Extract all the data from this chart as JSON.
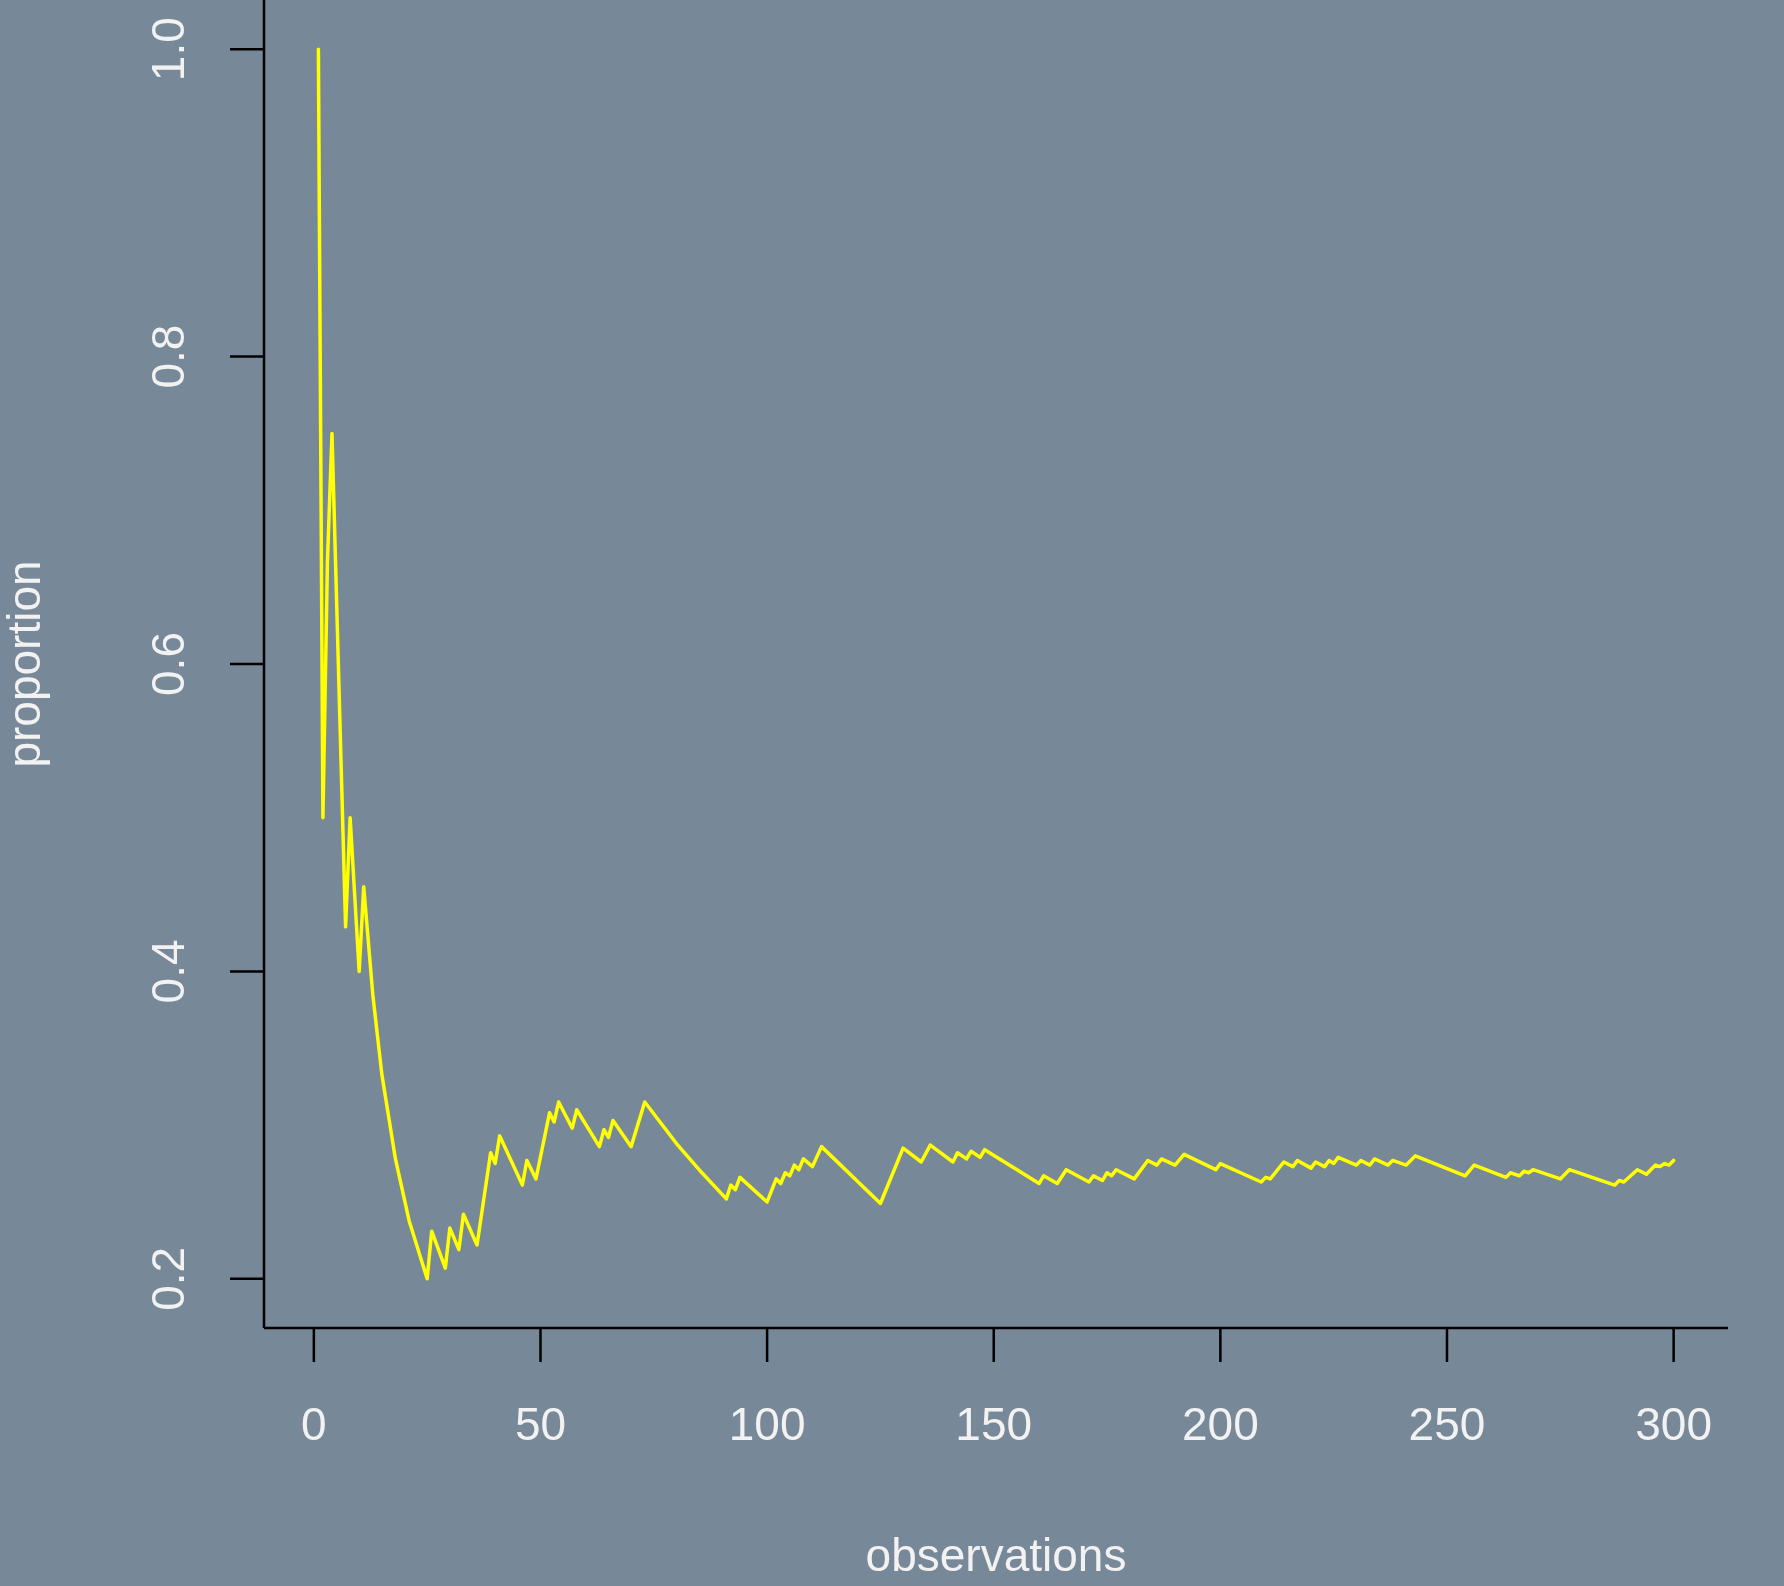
{
  "chart_data": {
    "type": "line",
    "xlabel": "observations",
    "ylabel": "proportion",
    "color": "#ffff00",
    "x": [
      1,
      2,
      3,
      4,
      7,
      8,
      10,
      11,
      13,
      15,
      18,
      21,
      25,
      26,
      29,
      30,
      32,
      33,
      36,
      39,
      40,
      41,
      46,
      47,
      49,
      52,
      53,
      54,
      57,
      58,
      63,
      64,
      65,
      66,
      70,
      73,
      80,
      85,
      91,
      92,
      93,
      94,
      100,
      102,
      103,
      104,
      105,
      106,
      107,
      108,
      110,
      112,
      125,
      130,
      134,
      136,
      141,
      142,
      144,
      145,
      147,
      148,
      160,
      161,
      164,
      166,
      171,
      172,
      174,
      175,
      176,
      177,
      181,
      184,
      186,
      187,
      190,
      192,
      199,
      200,
      209,
      210,
      211,
      214,
      216,
      217,
      220,
      221,
      223,
      224,
      225,
      226,
      230,
      231,
      233,
      234,
      237,
      238,
      241,
      243,
      254,
      256,
      263,
      264,
      266,
      267,
      268,
      269,
      275,
      277,
      287,
      288,
      289,
      292,
      294,
      296,
      297,
      298,
      299,
      300
    ],
    "values": [
      1,
      0.5,
      0.667,
      0.75,
      0.429,
      0.5,
      0.4,
      0.455,
      0.385,
      0.333,
      0.278,
      0.238,
      0.2,
      0.231,
      0.207,
      0.233,
      0.219,
      0.242,
      0.222,
      0.282,
      0.275,
      0.293,
      0.261,
      0.277,
      0.265,
      0.308,
      0.302,
      0.315,
      0.298,
      0.31,
      0.286,
      0.297,
      0.292,
      0.303,
      0.286,
      0.315,
      0.288,
      0.271,
      0.252,
      0.261,
      0.258,
      0.266,
      0.25,
      0.265,
      0.262,
      0.269,
      0.267,
      0.274,
      0.271,
      0.278,
      0.273,
      0.286,
      0.249,
      0.285,
      0.276,
      0.287,
      0.276,
      0.282,
      0.278,
      0.283,
      0.279,
      0.284,
      0.262,
      0.267,
      0.262,
      0.271,
      0.263,
      0.267,
      0.264,
      0.269,
      0.267,
      0.271,
      0.265,
      0.277,
      0.274,
      0.278,
      0.274,
      0.281,
      0.271,
      0.275,
      0.263,
      0.266,
      0.265,
      0.276,
      0.273,
      0.277,
      0.272,
      0.276,
      0.273,
      0.277,
      0.275,
      0.279,
      0.274,
      0.277,
      0.274,
      0.278,
      0.274,
      0.277,
      0.274,
      0.28,
      0.267,
      0.274,
      0.266,
      0.269,
      0.267,
      0.27,
      0.269,
      0.271,
      0.265,
      0.271,
      0.261,
      0.264,
      0.263,
      0.271,
      0.268,
      0.274,
      0.273,
      0.275,
      0.274,
      0.277
    ],
    "xlim": [
      -11,
      312
    ],
    "xticks": [
      0,
      50,
      100,
      150,
      200,
      250,
      300
    ],
    "ylim": [
      0.168,
      1.032
    ],
    "yticks": [
      0.2,
      0.4,
      0.6,
      0.8,
      {
        "value": 1,
        "label": "1.0"
      }
    ]
  }
}
